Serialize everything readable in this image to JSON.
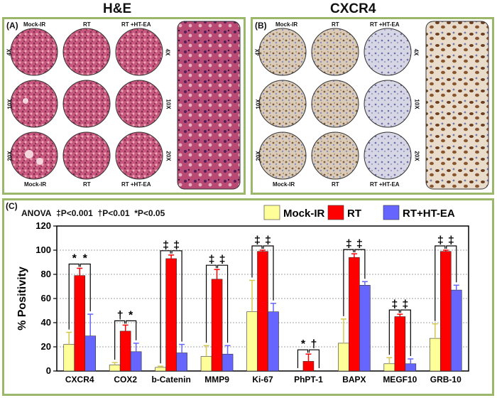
{
  "panel_a": {
    "title": "H&E",
    "letter": "(A)",
    "col_labels_top": [
      "Mock-IR",
      "RT",
      "RT +HT-EA"
    ],
    "col_labels_bottom": [
      "Mock-IR",
      "RT",
      "RT +HT-EA"
    ],
    "row_labels": [
      "4X",
      "10X",
      "20X"
    ]
  },
  "panel_b": {
    "title": "CXCR4",
    "letter": "(B)",
    "col_labels_top": [
      "Mock-IR",
      "RT",
      "RT +HT-EA"
    ],
    "col_labels_bottom": [
      "Mock-IR",
      "RT",
      "RT +HT-EA"
    ],
    "row_labels": [
      "4X",
      "10X",
      "20X"
    ]
  },
  "panel_c": {
    "letter": "(C)",
    "anova_label": "ANOVA",
    "sig_legend": [
      "‡P<0.001",
      "†P<0.01",
      "*P<0.05"
    ]
  },
  "colors": {
    "mock": "#ffff99",
    "rt": "#ff0000",
    "rt_ht": "#6666ff",
    "frame": "#9bb86a"
  },
  "chart_data": {
    "type": "bar",
    "ylabel": "% Positivity",
    "ylim": [
      0,
      120
    ],
    "yticks": [
      0,
      20,
      40,
      60,
      80,
      100,
      120
    ],
    "categories": [
      "CXCR4",
      "COX2",
      "b-Catenin",
      "MMP9",
      "Ki-67",
      "PhPT-1",
      "BAPX",
      "MEGF10",
      "GRB-10"
    ],
    "series": [
      {
        "name": "Mock-IR",
        "color": "#ffff99",
        "values": [
          22,
          5,
          3,
          12,
          49,
          0,
          23,
          6,
          27
        ],
        "errors": [
          10,
          2,
          1,
          9,
          26,
          0,
          20,
          5,
          12
        ]
      },
      {
        "name": "RT",
        "color": "#ff0000",
        "values": [
          79,
          33,
          93,
          76,
          99,
          8,
          94,
          45,
          99
        ],
        "errors": [
          6,
          5,
          3,
          8,
          1,
          6,
          3,
          2,
          1
        ]
      },
      {
        "name": "RT+HT-EA",
        "color": "#6666ff",
        "values": [
          29,
          16,
          15,
          14,
          49,
          0,
          71,
          6,
          67
        ],
        "errors": [
          18,
          7,
          7,
          7,
          7,
          0,
          3,
          4,
          4
        ]
      }
    ],
    "significance": [
      {
        "left": "*",
        "right": "*"
      },
      {
        "left": "†",
        "right": "*"
      },
      {
        "left": "‡",
        "right": "‡"
      },
      {
        "left": "‡",
        "right": "‡"
      },
      {
        "left": "‡",
        "right": "‡"
      },
      {
        "left": "*",
        "right": "†"
      },
      {
        "left": "‡",
        "right": "‡"
      },
      {
        "left": "‡",
        "right": "‡"
      },
      {
        "left": "‡",
        "right": "‡"
      }
    ],
    "legend_position": "top-right"
  }
}
